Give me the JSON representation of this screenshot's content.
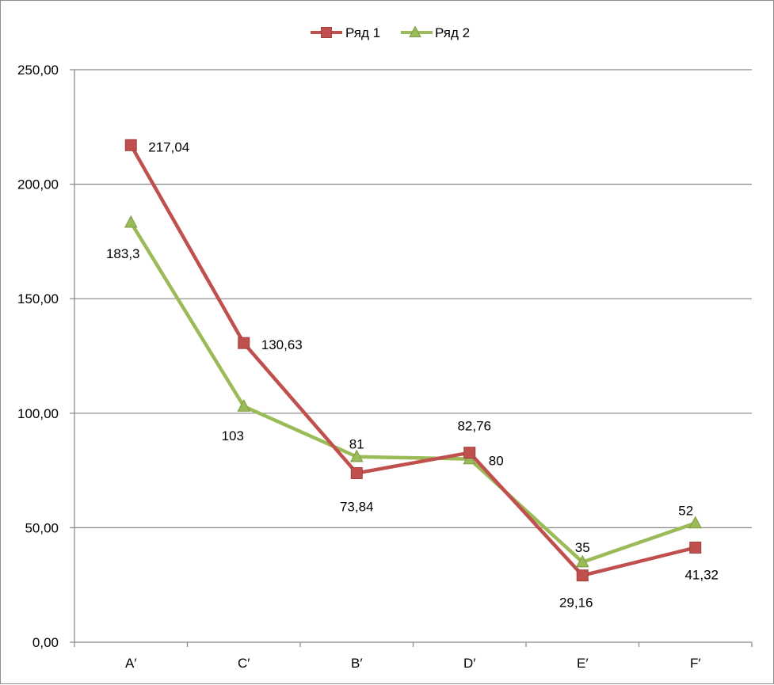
{
  "chart_data": {
    "type": "line",
    "categories": [
      "A′",
      "C′",
      "B′",
      "D′",
      "E′",
      "F′"
    ],
    "series": [
      {
        "name": "Ряд 1",
        "values": [
          217.04,
          130.63,
          73.84,
          82.76,
          29.16,
          41.32
        ],
        "labels": [
          "217,04",
          "130,63",
          "73,84",
          "82,76",
          "29,16",
          "41,32"
        ],
        "color": "#c0504d",
        "marker": "square"
      },
      {
        "name": "Ряд 2",
        "values": [
          183.3,
          103,
          81,
          80,
          35,
          52
        ],
        "labels": [
          "183,3",
          "103",
          "81",
          "80",
          "35",
          "52"
        ],
        "color": "#9bbb59",
        "marker": "triangle"
      }
    ],
    "y_ticks": [
      "0,00",
      "50,00",
      "100,00",
      "150,00",
      "200,00",
      "250,00"
    ],
    "ylim": [
      0,
      250
    ],
    "grid": true,
    "legend_position": "top"
  }
}
